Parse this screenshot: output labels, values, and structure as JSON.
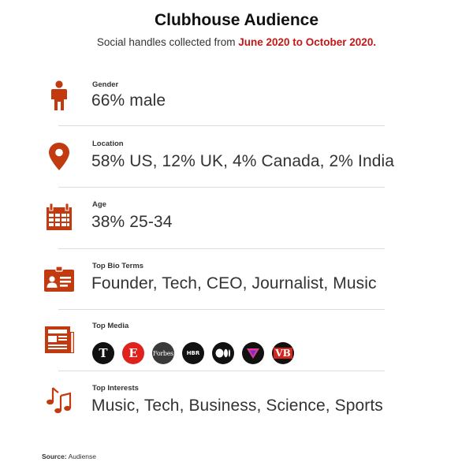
{
  "header": {
    "title": "Clubhouse Audience",
    "subtitle_prefix": "Social handles collected from ",
    "subtitle_highlight": "June 2020 to October 2020."
  },
  "accent_color": "#c23b10",
  "highlight_color": "#c21818",
  "rows": [
    {
      "label": "Gender",
      "value": "66% male",
      "icon": "person-icon"
    },
    {
      "label": "Location",
      "value": "58% US, 12% UK, 4% Canada, 2% India",
      "icon": "map-pin-icon"
    },
    {
      "label": "Age",
      "value": "38% 25-34",
      "icon": "calendar-icon"
    },
    {
      "label": "Top Bio Terms",
      "value": "Founder, Tech, CEO, Journalist, Music",
      "icon": "id-card-icon"
    },
    {
      "label": "Top Media",
      "icon": "newspaper-icon"
    },
    {
      "label": "Top Interests",
      "value": "Music, Tech, Business, Science, Sports",
      "icon": "music-notes-icon"
    }
  ],
  "media_logos": [
    {
      "name": "new-york-times-logo",
      "text": "T"
    },
    {
      "name": "entrepreneur-logo",
      "text": "E"
    },
    {
      "name": "forbes-logo",
      "text": "Forbes"
    },
    {
      "name": "hbr-logo",
      "text": "HBR"
    },
    {
      "name": "medium-logo",
      "text": ""
    },
    {
      "name": "verge-logo",
      "text": ""
    },
    {
      "name": "venturebeat-logo",
      "text": "VB"
    }
  ],
  "source": {
    "label": "Source:",
    "value": "Audiense"
  }
}
